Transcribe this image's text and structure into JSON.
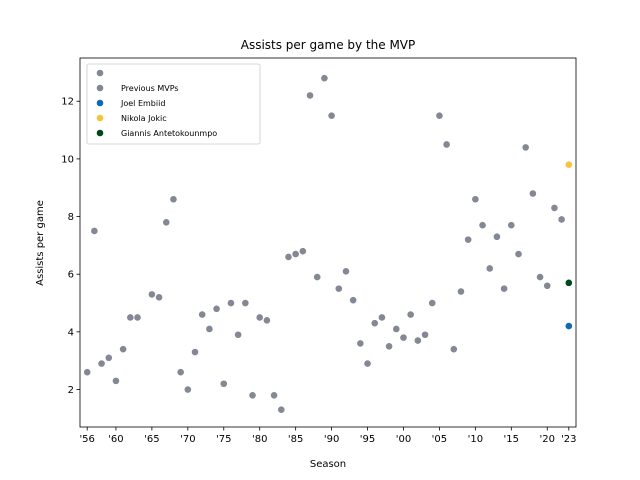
{
  "chart_data": {
    "type": "scatter",
    "title": "Assists per game by the MVP",
    "xlabel": "Season",
    "ylabel": "Assists per game",
    "x_tick_labels": [
      "'56",
      "'60",
      "'65",
      "'70",
      "'75",
      "'80",
      "'85",
      "'90",
      "'95",
      "'00",
      "'05",
      "'10",
      "'15",
      "'20",
      "'23"
    ],
    "x_tick_values": [
      1956,
      1960,
      1965,
      1970,
      1975,
      1980,
      1985,
      1990,
      1995,
      2000,
      2005,
      2010,
      2015,
      2020,
      2023
    ],
    "y_ticks": [
      2,
      4,
      6,
      8,
      10,
      12
    ],
    "xlim": [
      1955,
      2024
    ],
    "ylim": [
      0.7,
      13.5
    ],
    "grid": false,
    "legend_placement": "top-left",
    "series": [
      {
        "name": "Previous MVPs",
        "color": "#838894",
        "points": [
          [
            1956,
            2.6
          ],
          [
            1957,
            7.5
          ],
          [
            1958,
            2.9
          ],
          [
            1959,
            3.1
          ],
          [
            1960,
            2.3
          ],
          [
            1961,
            3.4
          ],
          [
            1962,
            4.5
          ],
          [
            1963,
            4.5
          ],
          [
            1965,
            5.3
          ],
          [
            1966,
            5.2
          ],
          [
            1967,
            7.8
          ],
          [
            1968,
            8.6
          ],
          [
            1969,
            2.6
          ],
          [
            1970,
            2.0
          ],
          [
            1971,
            3.3
          ],
          [
            1972,
            4.6
          ],
          [
            1973,
            4.1
          ],
          [
            1974,
            4.8
          ],
          [
            1975,
            2.2
          ],
          [
            1976,
            5.0
          ],
          [
            1977,
            3.9
          ],
          [
            1978,
            5.0
          ],
          [
            1979,
            1.8
          ],
          [
            1980,
            4.5
          ],
          [
            1981,
            4.4
          ],
          [
            1982,
            1.8
          ],
          [
            1983,
            1.3
          ],
          [
            1984,
            6.6
          ],
          [
            1985,
            6.7
          ],
          [
            1986,
            6.8
          ],
          [
            1987,
            12.2
          ],
          [
            1988,
            5.9
          ],
          [
            1989,
            12.8
          ],
          [
            1990,
            11.5
          ],
          [
            1991,
            5.5
          ],
          [
            1992,
            6.1
          ],
          [
            1993,
            5.1
          ],
          [
            1994,
            3.6
          ],
          [
            1995,
            2.9
          ],
          [
            1996,
            4.3
          ],
          [
            1997,
            4.5
          ],
          [
            1998,
            3.5
          ],
          [
            1999,
            4.1
          ],
          [
            2000,
            3.8
          ],
          [
            2001,
            4.6
          ],
          [
            2002,
            3.7
          ],
          [
            2003,
            3.9
          ],
          [
            2004,
            5.0
          ],
          [
            2005,
            11.5
          ],
          [
            2006,
            10.5
          ],
          [
            2007,
            3.4
          ],
          [
            2008,
            5.4
          ],
          [
            2009,
            7.2
          ],
          [
            2010,
            8.6
          ],
          [
            2011,
            7.7
          ],
          [
            2012,
            6.2
          ],
          [
            2013,
            7.3
          ],
          [
            2014,
            5.5
          ],
          [
            2015,
            7.7
          ],
          [
            2016,
            6.7
          ],
          [
            2017,
            10.4
          ],
          [
            2018,
            8.8
          ],
          [
            2019,
            5.9
          ],
          [
            2020,
            5.6
          ],
          [
            2021,
            8.3
          ],
          [
            2022,
            7.9
          ]
        ]
      },
      {
        "name": "Joel Embiid",
        "color": "#0d6ab8",
        "points": [
          [
            2023,
            4.2
          ]
        ]
      },
      {
        "name": "Nikola Jokic",
        "color": "#f9c23c",
        "points": [
          [
            2023,
            9.8
          ]
        ]
      },
      {
        "name": "Giannis Antetokounmpo",
        "color": "#00471b",
        "points": [
          [
            2023,
            5.7
          ]
        ]
      }
    ]
  }
}
